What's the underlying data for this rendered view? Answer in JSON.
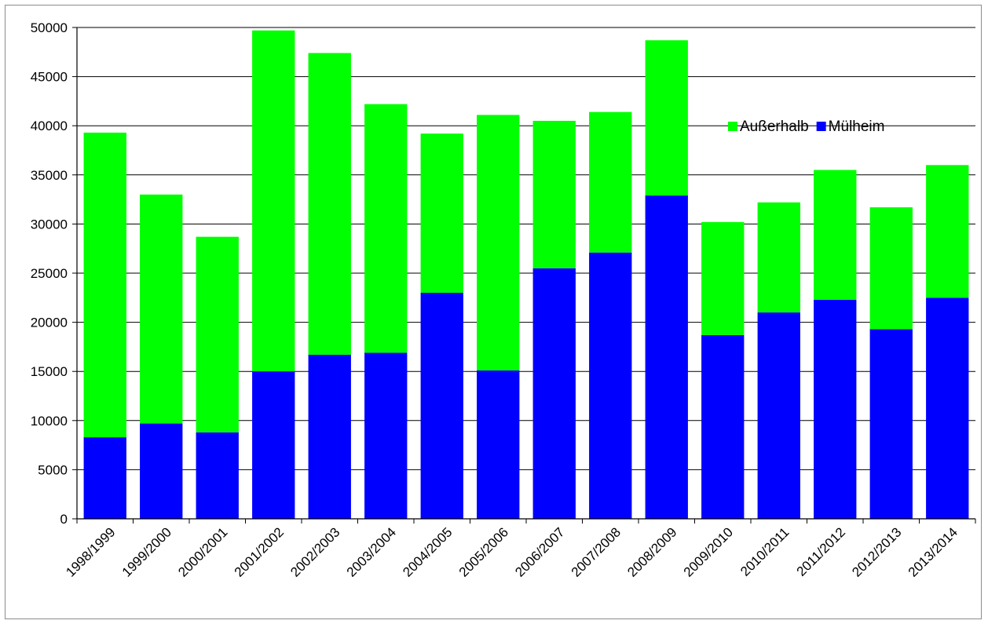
{
  "chart_data": {
    "type": "bar",
    "stacked": true,
    "title": "",
    "xlabel": "",
    "ylabel": "",
    "ylim": [
      0,
      50000
    ],
    "yticks": [
      0,
      5000,
      10000,
      15000,
      20000,
      25000,
      30000,
      35000,
      40000,
      45000,
      50000
    ],
    "grid": true,
    "legend_position": "top-right",
    "categories": [
      "1998/1999",
      "1999/2000",
      "2000/2001",
      "2001/2002",
      "2002/2003",
      "2003/2004",
      "2004/2005",
      "2005/2006",
      "2006/2007",
      "2007/2008",
      "2008/2009",
      "2009/2010",
      "2010/2011",
      "2011/2012",
      "2012/2013",
      "2013/2014"
    ],
    "series": [
      {
        "name": "Mülheim",
        "color": "#0000ff",
        "values": [
          8300,
          9700,
          8800,
          15000,
          16700,
          16900,
          23000,
          15100,
          25500,
          27100,
          32900,
          18700,
          21000,
          22300,
          19300,
          22500
        ]
      },
      {
        "name": "Außerhalb",
        "color": "#00ff00",
        "values": [
          31000,
          23300,
          19900,
          34700,
          30700,
          25300,
          16200,
          26000,
          15000,
          14300,
          15800,
          11500,
          11200,
          13200,
          12400,
          13500
        ]
      }
    ],
    "legend_order": [
      "Außerhalb",
      "Mülheim"
    ]
  }
}
